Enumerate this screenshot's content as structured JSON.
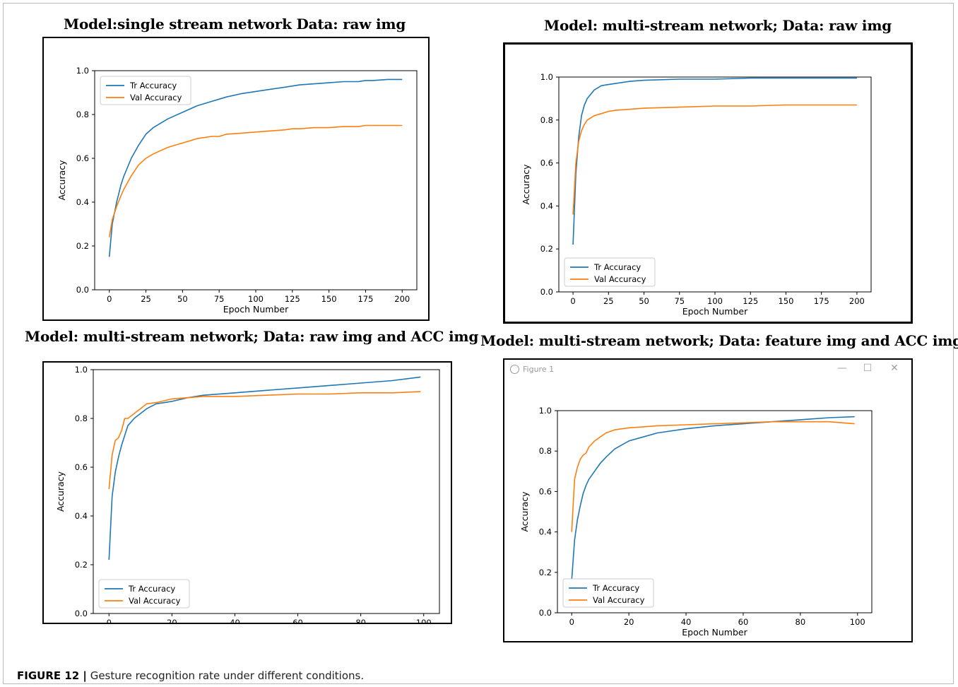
{
  "figure": {
    "caption_label": "FIGURE 12 |",
    "caption_text": " Gesture recognition rate under different conditions."
  },
  "panels": [
    {
      "title": "Model:single stream network   Data: raw img"
    },
    {
      "title": "Model: multi-stream network; Data: raw img"
    },
    {
      "title": "Model: multi-stream network; Data: raw img and ACC img"
    },
    {
      "title": "Model: multi-stream network; Data: feature img and ACC img",
      "window": {
        "title": "Figure 1",
        "minimize_glyph": "—",
        "maximize_glyph": "☐",
        "close_glyph": "✕"
      }
    }
  ],
  "colors": {
    "train": "#1f77b4",
    "val": "#ff7f0e"
  },
  "chart_data": [
    {
      "type": "line",
      "xlabel": "Epoch Number",
      "ylabel": "Accuracy",
      "xlim": [
        -10,
        210
      ],
      "ylim": [
        0,
        1.0
      ],
      "xticks": [
        0,
        25,
        50,
        75,
        100,
        125,
        150,
        175,
        200
      ],
      "yticks": [
        0.0,
        0.2,
        0.4,
        0.6,
        0.8,
        1.0
      ],
      "legend": "top-left",
      "grid": false,
      "series": [
        {
          "name": "Tr Accuracy",
          "color": "#1f77b4",
          "x": [
            0,
            2,
            5,
            8,
            10,
            15,
            20,
            25,
            30,
            40,
            50,
            60,
            70,
            75,
            80,
            90,
            100,
            110,
            120,
            125,
            130,
            140,
            150,
            160,
            170,
            175,
            180,
            190,
            200
          ],
          "y": [
            0.15,
            0.3,
            0.4,
            0.48,
            0.52,
            0.6,
            0.66,
            0.71,
            0.74,
            0.78,
            0.81,
            0.84,
            0.86,
            0.87,
            0.88,
            0.895,
            0.905,
            0.915,
            0.925,
            0.93,
            0.935,
            0.94,
            0.945,
            0.95,
            0.95,
            0.955,
            0.955,
            0.96,
            0.96
          ]
        },
        {
          "name": "Val Accuracy",
          "color": "#ff7f0e",
          "x": [
            0,
            2,
            5,
            8,
            10,
            15,
            20,
            25,
            30,
            40,
            50,
            60,
            70,
            75,
            80,
            90,
            100,
            110,
            120,
            125,
            130,
            140,
            150,
            160,
            170,
            175,
            180,
            190,
            200
          ],
          "y": [
            0.24,
            0.32,
            0.38,
            0.43,
            0.46,
            0.52,
            0.57,
            0.6,
            0.62,
            0.65,
            0.67,
            0.69,
            0.7,
            0.7,
            0.71,
            0.715,
            0.72,
            0.725,
            0.73,
            0.735,
            0.735,
            0.74,
            0.74,
            0.745,
            0.745,
            0.75,
            0.75,
            0.75,
            0.75
          ]
        }
      ]
    },
    {
      "type": "line",
      "xlabel": "Epoch Number",
      "ylabel": "Accuracy",
      "xlim": [
        -10,
        210
      ],
      "ylim": [
        0,
        1.0
      ],
      "xticks": [
        0,
        25,
        50,
        75,
        100,
        125,
        150,
        175,
        200
      ],
      "yticks": [
        0.0,
        0.2,
        0.4,
        0.6,
        0.8,
        1.0
      ],
      "legend": "bottom-left",
      "grid": false,
      "series": [
        {
          "name": "Tr Accuracy",
          "color": "#1f77b4",
          "x": [
            0,
            2,
            4,
            6,
            8,
            10,
            15,
            20,
            25,
            30,
            40,
            50,
            75,
            100,
            125,
            150,
            175,
            200
          ],
          "y": [
            0.22,
            0.55,
            0.72,
            0.82,
            0.87,
            0.9,
            0.94,
            0.96,
            0.965,
            0.97,
            0.98,
            0.985,
            0.99,
            0.99,
            0.995,
            0.995,
            0.995,
            0.995
          ]
        },
        {
          "name": "Val Accuracy",
          "color": "#ff7f0e",
          "x": [
            0,
            2,
            4,
            6,
            8,
            10,
            15,
            20,
            25,
            30,
            40,
            50,
            75,
            100,
            125,
            150,
            175,
            200
          ],
          "y": [
            0.36,
            0.6,
            0.7,
            0.75,
            0.78,
            0.8,
            0.82,
            0.83,
            0.84,
            0.845,
            0.85,
            0.855,
            0.86,
            0.865,
            0.865,
            0.87,
            0.87,
            0.87
          ]
        }
      ]
    },
    {
      "type": "line",
      "xlabel": "Epoch Number",
      "ylabel": "Accuracy",
      "xlim": [
        -5,
        105
      ],
      "ylim": [
        0,
        1.0
      ],
      "xticks": [
        0,
        20,
        40,
        60,
        80,
        100
      ],
      "yticks": [
        0.0,
        0.2,
        0.4,
        0.6,
        0.8,
        1.0
      ],
      "legend": "bottom-left",
      "grid": false,
      "series": [
        {
          "name": "Tr Accuracy",
          "color": "#1f77b4",
          "x": [
            0,
            1,
            2,
            3,
            4,
            5,
            6,
            8,
            10,
            12,
            15,
            20,
            25,
            30,
            40,
            50,
            60,
            70,
            80,
            90,
            99
          ],
          "y": [
            0.22,
            0.48,
            0.58,
            0.64,
            0.69,
            0.73,
            0.77,
            0.8,
            0.82,
            0.84,
            0.86,
            0.87,
            0.885,
            0.895,
            0.905,
            0.915,
            0.925,
            0.935,
            0.945,
            0.955,
            0.97
          ]
        },
        {
          "name": "Val Accuracy",
          "color": "#ff7f0e",
          "x": [
            0,
            1,
            2,
            3,
            4,
            5,
            6,
            8,
            10,
            12,
            15,
            20,
            25,
            30,
            40,
            50,
            60,
            70,
            80,
            90,
            99
          ],
          "y": [
            0.51,
            0.65,
            0.71,
            0.72,
            0.75,
            0.8,
            0.8,
            0.82,
            0.84,
            0.86,
            0.865,
            0.88,
            0.885,
            0.89,
            0.89,
            0.895,
            0.9,
            0.9,
            0.905,
            0.905,
            0.91
          ]
        }
      ]
    },
    {
      "type": "line",
      "xlabel": "Epoch Number",
      "ylabel": "Accuracy",
      "xlim": [
        -5,
        105
      ],
      "ylim": [
        0,
        1.0
      ],
      "xticks": [
        0,
        20,
        40,
        60,
        80,
        100
      ],
      "yticks": [
        0.0,
        0.2,
        0.4,
        0.6,
        0.8,
        1.0
      ],
      "legend": "bottom-left",
      "grid": false,
      "series": [
        {
          "name": "Tr Accuracy",
          "color": "#1f77b4",
          "x": [
            0,
            1,
            2,
            3,
            4,
            5,
            6,
            8,
            10,
            12,
            15,
            20,
            25,
            30,
            40,
            50,
            60,
            70,
            80,
            90,
            99
          ],
          "y": [
            0.16,
            0.36,
            0.46,
            0.53,
            0.59,
            0.63,
            0.66,
            0.7,
            0.74,
            0.77,
            0.81,
            0.85,
            0.87,
            0.89,
            0.91,
            0.925,
            0.935,
            0.945,
            0.955,
            0.965,
            0.97
          ]
        },
        {
          "name": "Val Accuracy",
          "color": "#ff7f0e",
          "x": [
            0,
            1,
            2,
            3,
            4,
            5,
            6,
            8,
            10,
            12,
            15,
            20,
            25,
            30,
            40,
            50,
            60,
            70,
            80,
            90,
            99
          ],
          "y": [
            0.4,
            0.66,
            0.72,
            0.76,
            0.78,
            0.79,
            0.82,
            0.85,
            0.87,
            0.89,
            0.905,
            0.915,
            0.92,
            0.925,
            0.93,
            0.935,
            0.94,
            0.945,
            0.945,
            0.945,
            0.935
          ]
        }
      ]
    }
  ]
}
